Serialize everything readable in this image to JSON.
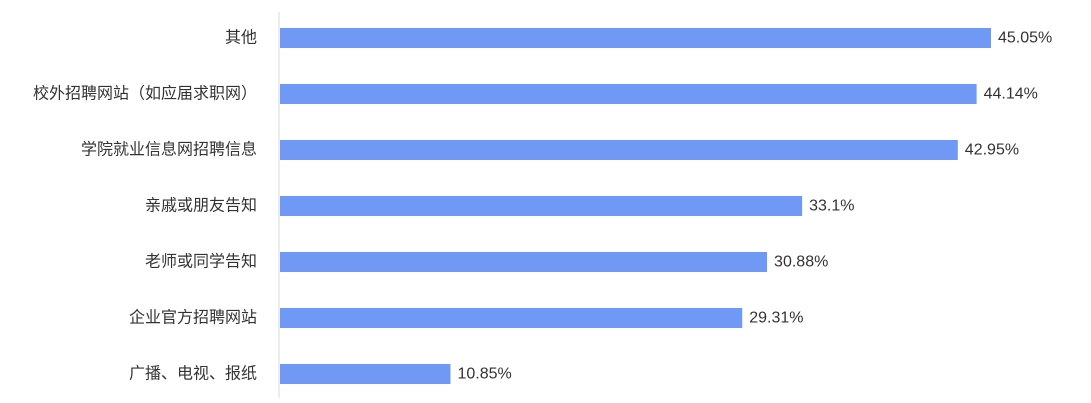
{
  "chart_data": {
    "type": "bar",
    "orientation": "horizontal",
    "categories": [
      "其他",
      "校外招聘网站（如应届求职网）",
      "学院就业信息网招聘信息",
      "亲戚或朋友告知",
      "老师或同学告知",
      "企业官方招聘网站",
      "广播、电视、报纸"
    ],
    "values": [
      45.05,
      44.14,
      42.95,
      33.1,
      30.88,
      29.31,
      10.85
    ],
    "data_labels": [
      "45.05%",
      "44.14%",
      "42.95%",
      "33.1%",
      "30.88%",
      "29.31%",
      "10.85%"
    ],
    "xlim": [
      0,
      45.05
    ],
    "grid": false,
    "legend": "none",
    "colors": {
      "bar": "#7099F5",
      "axis": "#D9D9D9",
      "text": "#333333"
    }
  }
}
